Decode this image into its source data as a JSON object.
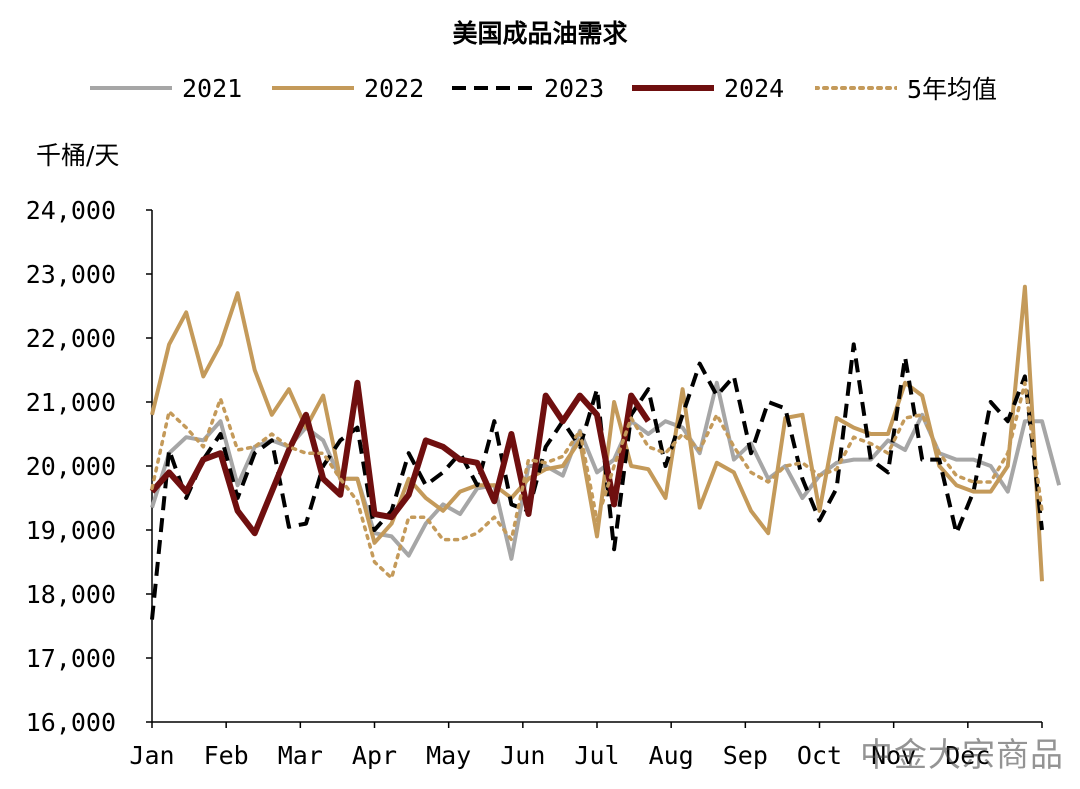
{
  "chart_data": {
    "type": "line",
    "title": "美国成品油需求",
    "ylabel": "千桶/天",
    "xlabel": "",
    "ylim": [
      16000,
      24000
    ],
    "yticks": [
      "16,000",
      "17,000",
      "18,000",
      "19,000",
      "20,000",
      "21,000",
      "22,000",
      "23,000",
      "24,000"
    ],
    "ytick_values": [
      16000,
      17000,
      18000,
      19000,
      20000,
      21000,
      22000,
      23000,
      24000
    ],
    "months": [
      "Jan",
      "Feb",
      "Mar",
      "Apr",
      "May",
      "Jun",
      "Jul",
      "Aug",
      "Sep",
      "Oct",
      "Nov",
      "Dec"
    ],
    "x_unit": "week",
    "xlim": [
      1,
      53
    ],
    "legend_position": "top",
    "grid": false,
    "series": [
      {
        "name": "2021",
        "color": "#A6A6A6",
        "style": "solid",
        "width": 4,
        "values": [
          19350,
          20200,
          20450,
          20400,
          20700,
          19700,
          20300,
          20400,
          20300,
          20600,
          20400,
          19800,
          19800,
          18950,
          18900,
          18600,
          19100,
          19400,
          19250,
          19650,
          19700,
          18550,
          20000,
          20000,
          19850,
          20550,
          19900,
          20100,
          20700,
          20500,
          20700,
          20600,
          20200,
          21300,
          20100,
          20350,
          19800,
          20000,
          19500,
          19850,
          20050,
          20100,
          20100,
          20400,
          20250,
          20800,
          20200,
          20100,
          20100,
          20000,
          19600,
          20700,
          20700,
          19700
        ]
      },
      {
        "name": "2022",
        "color": "#C49A5A",
        "style": "solid",
        "width": 4,
        "values": [
          20800,
          21900,
          22400,
          21400,
          21900,
          22700,
          21500,
          20800,
          21200,
          20600,
          21100,
          19800,
          19800,
          18800,
          19100,
          19800,
          19500,
          19300,
          19600,
          19700,
          19700,
          19500,
          19800,
          19950,
          20000,
          20400,
          18900,
          21000,
          20000,
          19950,
          19500,
          21200,
          19350,
          20050,
          19900,
          19300,
          18950,
          20750,
          20800,
          19300,
          20750,
          20600,
          20500,
          20500,
          21300,
          21100,
          20000,
          19700,
          19600,
          19600,
          20000,
          22800,
          18200
        ]
      },
      {
        "name": "2023",
        "color": "#000000",
        "style": "dashed",
        "width": 4,
        "values": [
          17600,
          20250,
          19500,
          20100,
          20500,
          19500,
          20200,
          20400,
          19050,
          19100,
          20000,
          20400,
          20600,
          19000,
          19300,
          20200,
          19700,
          19900,
          20200,
          19700,
          20700,
          19400,
          19300,
          20300,
          20700,
          20300,
          21200,
          18700,
          20800,
          21200,
          20000,
          20800,
          21600,
          21100,
          21400,
          20200,
          21000,
          20900,
          19800,
          19150,
          19650,
          21900,
          20100,
          19900,
          21700,
          20100,
          20100,
          18950,
          19600,
          21000,
          20700,
          21400,
          19000
        ]
      },
      {
        "name": "2024",
        "color": "#6F0F0F",
        "style": "solid",
        "width": 6,
        "values": [
          19600,
          19900,
          19600,
          20100,
          20200,
          19300,
          18950,
          19600,
          20250,
          20800,
          19800,
          19550,
          21300,
          19250,
          19200,
          19550,
          20400,
          20300,
          20100,
          20050,
          19450,
          20500,
          19250,
          21100,
          20700,
          21100,
          20800,
          19400,
          21100,
          20700
        ]
      },
      {
        "name": "5年均值",
        "color": "#C49A5A",
        "style": "dotted",
        "width": 3.5,
        "values": [
          19650,
          20850,
          20600,
          20300,
          21050,
          20250,
          20300,
          20500,
          20300,
          20200,
          20200,
          19800,
          19450,
          18500,
          18250,
          19200,
          19200,
          18850,
          18850,
          18950,
          19200,
          18850,
          20100,
          20050,
          20150,
          20550,
          19150,
          20000,
          20750,
          20300,
          20200,
          20500,
          20250,
          20800,
          20300,
          19900,
          19750,
          20000,
          20050,
          19850,
          19950,
          20450,
          20350,
          20200,
          20750,
          20800,
          20200,
          19850,
          19750,
          19750,
          20200,
          21300,
          19300
        ]
      }
    ]
  },
  "watermark": "中金大宗商品"
}
